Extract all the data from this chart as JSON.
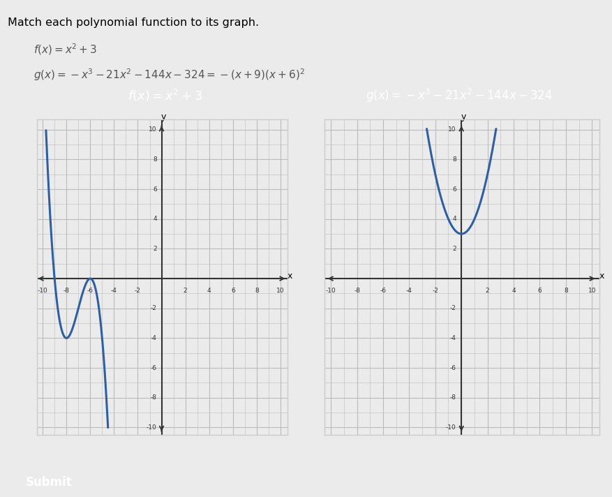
{
  "title": "Match each polynomial function to its graph.",
  "func1_text": "f(x) = x² + 3",
  "func2_text": "g(x) = −x³ − 21x² − 144x − 324 = −(x + 9)(x + 6)²",
  "header_eq1": "$f(x) = x^2 + 3$",
  "header_eq2": "$g(x) = -x^3 - 21x^2 - 144x - 324$",
  "background_color": "#f0f0f0",
  "page_bg": "#e8e8e8",
  "header_bg_color": "#2060b0",
  "header_text_color": "#ffffff",
  "curve_color": "#2e5fa3",
  "grid_color": "#bbbbbb",
  "axis_line_color": "#333333",
  "submit_bg": "#2d8c4e",
  "submit_text": "Submit",
  "answer_box_color": "#b8d8e4",
  "xlim": [
    -10,
    10
  ],
  "ylim": [
    -10,
    10
  ],
  "tick_step": 2
}
